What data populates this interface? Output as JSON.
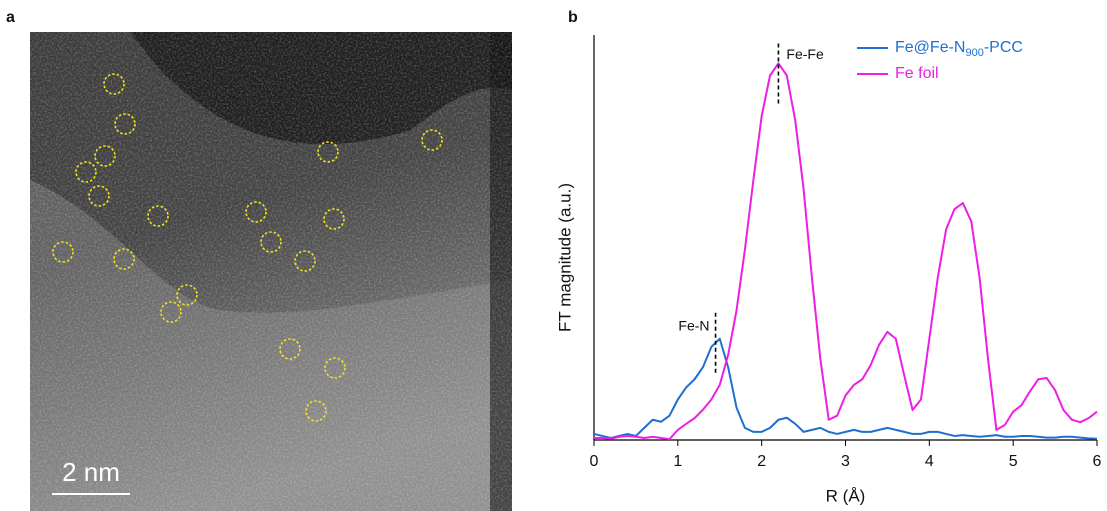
{
  "panel_a": {
    "label": "a",
    "scale_bar": "2 nm"
  },
  "chart_data": {
    "type": "line",
    "panel_label": "b",
    "xlabel": "R (Å)",
    "ylabel": "FT magnitude (a.u.)",
    "xlim": [
      0,
      6
    ],
    "xticks": [
      0,
      1,
      2,
      3,
      4,
      5,
      6
    ],
    "ylim": [
      0,
      100
    ],
    "legend": "upper right",
    "x": [
      0,
      0.1,
      0.2,
      0.3,
      0.4,
      0.5,
      0.6,
      0.7,
      0.8,
      0.9,
      1,
      1.1,
      1.2,
      1.3,
      1.4,
      1.5,
      1.6,
      1.7,
      1.8,
      1.9,
      2,
      2.1,
      2.2,
      2.3,
      2.4,
      2.5,
      2.6,
      2.7,
      2.8,
      2.9,
      3,
      3.1,
      3.2,
      3.3,
      3.4,
      3.5,
      3.6,
      3.7,
      3.8,
      3.9,
      4,
      4.1,
      4.2,
      4.3,
      4.4,
      4.5,
      4.6,
      4.7,
      4.8,
      4.9,
      5,
      5.1,
      5.2,
      5.3,
      5.4,
      5.5,
      5.6,
      5.7,
      5.8,
      5.9,
      6
    ],
    "series": [
      {
        "name": "Fe@Fe-N900-PCC",
        "color": "#1f6fd1",
        "values": [
          1.5,
          1,
          0.5,
          1,
          1.5,
          1,
          3,
          5,
          4.5,
          6,
          10,
          13,
          15,
          18,
          23,
          25,
          18,
          8,
          3,
          2,
          2,
          3,
          5,
          5.5,
          4,
          2,
          2.5,
          3,
          2,
          1.5,
          2,
          2.5,
          2,
          2,
          2.5,
          3,
          2.5,
          2,
          1.5,
          1.5,
          2,
          2,
          1.5,
          1,
          1.2,
          1,
          0.8,
          1,
          1.2,
          0.8,
          0.8,
          1,
          1,
          0.8,
          0.6,
          0.6,
          0.8,
          0.8,
          0.6,
          0.4,
          0.3
        ]
      },
      {
        "name": "Fe foil",
        "color": "#ee1ee6",
        "values": [
          0.5,
          0.5,
          0.3,
          0.8,
          1,
          0.8,
          0.5,
          0.8,
          0.5,
          0.2,
          2.5,
          4,
          5.4,
          7.5,
          10,
          13.6,
          21,
          32,
          47,
          64,
          80,
          90,
          93,
          90,
          79,
          62,
          40,
          20,
          5,
          6,
          11,
          13.6,
          15,
          18.5,
          23.5,
          26.7,
          25,
          16,
          7.4,
          10,
          25,
          40,
          52,
          57,
          58.5,
          54,
          40,
          20,
          2.5,
          3.7,
          7,
          8.6,
          12,
          15,
          15.3,
          12.3,
          7.4,
          5,
          4.4,
          5.4,
          7
        ]
      }
    ],
    "annotations": [
      {
        "text": "Fe-Fe",
        "x": 2.2,
        "y": 90.5
      },
      {
        "text": "Fe-N",
        "x": 1.45,
        "y": 24
      }
    ]
  }
}
